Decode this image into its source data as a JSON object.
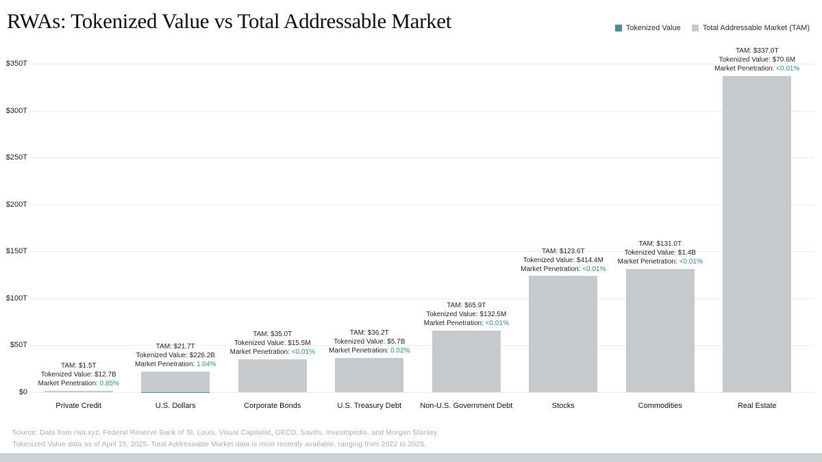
{
  "title": "RWAs: Tokenized Value vs Total Addressable Market",
  "legend": [
    {
      "label": "Tokenized Value",
      "color": "#4d8e95"
    },
    {
      "label": "Total Addressable Market (TAM)",
      "color": "#c7cacc"
    }
  ],
  "colors": {
    "accent_teal": "#4d8e95",
    "bar_gray": "#c7cacc",
    "gridline": "#eaebec",
    "footer_text": "#a9adb0"
  },
  "y_axis": {
    "ticks": [
      {
        "label": "$350T",
        "value": 350
      },
      {
        "label": "$300T",
        "value": 300
      },
      {
        "label": "$250T",
        "value": 250
      },
      {
        "label": "$200T",
        "value": 200
      },
      {
        "label": "$150T",
        "value": 150
      },
      {
        "label": "$100T",
        "value": 100
      },
      {
        "label": "$50T",
        "value": 50
      },
      {
        "label": "$0",
        "value": 0
      }
    ]
  },
  "chart_data": {
    "type": "bar",
    "title": "RWAs: Tokenized Value vs Total Addressable Market",
    "xlabel": "",
    "ylabel": "",
    "ylim_trillions": [
      0,
      350
    ],
    "grid": true,
    "legend_position": "top-right",
    "categories": [
      "Private Credit",
      "U.S. Dollars",
      "Corporate Bonds",
      "U.S. Treasury Debt",
      "Non-U.S. Government Debt",
      "Stocks",
      "Commodities",
      "Real Estate"
    ],
    "series": [
      {
        "name": "Tokenized Value",
        "color": "#4d8e95",
        "values_trillions": [
          0.0127,
          0.2262,
          1.55e-05,
          0.0057,
          0.0001325,
          0.0004144,
          0.0014,
          7.06e-05
        ]
      },
      {
        "name": "Total Addressable Market (TAM)",
        "color": "#c7cacc",
        "values_trillions": [
          1.5,
          21.7,
          35.0,
          36.2,
          65.9,
          123.6,
          131.0,
          337.0
        ]
      }
    ],
    "annotations": [
      {
        "tam": "TAM: $1.5T",
        "tokenized": "Tokenized Value: $12.7B",
        "penetration_label": "Market Penetration:",
        "penetration_value": "0.85%"
      },
      {
        "tam": "TAM: $21.7T",
        "tokenized": "Tokenized Value: $226.2B",
        "penetration_label": "Market Penetration:",
        "penetration_value": "1.04%"
      },
      {
        "tam": "TAM: $35.0T",
        "tokenized": "Tokenized Value: $15.5M",
        "penetration_label": "Market Penetration:",
        "penetration_value": "<0.01%"
      },
      {
        "tam": "TAM: $36.2T",
        "tokenized": "Tokenized Value: $5.7B",
        "penetration_label": "Market Penetration:",
        "penetration_value": "0.02%"
      },
      {
        "tam": "TAM: $65.9T",
        "tokenized": "Tokenized Value: $132.5M",
        "penetration_label": "Market Penetration:",
        "penetration_value": "<0.01%"
      },
      {
        "tam": "TAM: $123.6T",
        "tokenized": "Tokenized Value: $414.4M",
        "penetration_label": "Market Penetration:",
        "penetration_value": "<0.01%"
      },
      {
        "tam": "TAM: $131.0T",
        "tokenized": "Tokenized Value: $1.4B",
        "penetration_label": "Market Penetration:",
        "penetration_value": "<0.01%"
      },
      {
        "tam": "TAM: $337.0T",
        "tokenized": "Tokenized Value: $70.6M",
        "penetration_label": "Market Penetration:",
        "penetration_value": "<0.01%"
      }
    ]
  },
  "footer": {
    "line1": "Source: Data from rwa.xyz, Federal Reserve Bank of St. Louis, Visual Capitalist, OECD, Savills, Investopedia, and Morgan Stanley.",
    "line2": "Tokenized Value data as of April 15, 2025. Total Addressable Market data is most recently available, ranging from 2022 to 2025."
  }
}
